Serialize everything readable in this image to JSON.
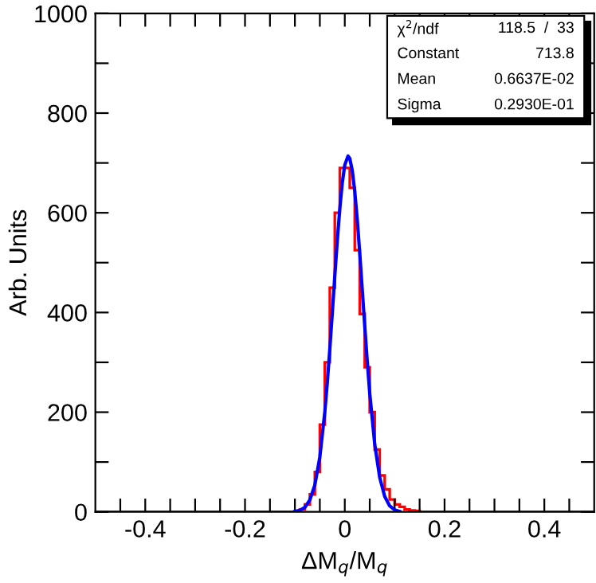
{
  "chart_data": {
    "type": "histogram",
    "xlabel": "ΔM$_{q}$/M$_{q}$",
    "ylabel": "Arb. Units",
    "bins": [
      -0.5,
      -0.49,
      -0.48,
      -0.47,
      -0.46,
      -0.45,
      -0.44,
      -0.43,
      -0.42,
      -0.41,
      -0.4,
      -0.39,
      -0.38,
      -0.37,
      -0.36,
      -0.35,
      -0.34,
      -0.33,
      -0.32,
      -0.31,
      -0.3,
      -0.29,
      -0.28,
      -0.27,
      -0.26,
      -0.25,
      -0.24,
      -0.23,
      -0.22,
      -0.21,
      -0.2,
      -0.19,
      -0.18,
      -0.17,
      -0.16,
      -0.15,
      -0.14,
      -0.13,
      -0.12,
      -0.11,
      -0.1,
      -0.09,
      -0.08,
      -0.07,
      -0.06,
      -0.05,
      -0.04,
      -0.03,
      -0.02,
      -0.01,
      0,
      0.01,
      0.02,
      0.03,
      0.04,
      0.05,
      0.06,
      0.07,
      0.08,
      0.09,
      0.1,
      0.11,
      0.12,
      0.13,
      0.14,
      0.15,
      0.16,
      0.17,
      0.18,
      0.19,
      0.2,
      0.21,
      0.22,
      0.23,
      0.24,
      0.25,
      0.26,
      0.27,
      0.28,
      0.29,
      0.3,
      0.31,
      0.32,
      0.33,
      0.34,
      0.35,
      0.36,
      0.37,
      0.38,
      0.39,
      0.4,
      0.41,
      0.42,
      0.43,
      0.44,
      0.45,
      0.46,
      0.47,
      0.48,
      0.49,
      0.5
    ],
    "series": [
      {
        "color": "#ff0000",
        "values": [
          0,
          0,
          0,
          0,
          0,
          0,
          0,
          0,
          0,
          0,
          0,
          0,
          0,
          0,
          0,
          0,
          0,
          0,
          0,
          0,
          0,
          0,
          0,
          0,
          0,
          0,
          0,
          0,
          0,
          0,
          0,
          0,
          0,
          0,
          0,
          0,
          0,
          0,
          0,
          0,
          0,
          5,
          15,
          35,
          80,
          175,
          300,
          450,
          600,
          690,
          690,
          650,
          525,
          397,
          290,
          200,
          125,
          73,
          45,
          25,
          15,
          10,
          5,
          3,
          2,
          0,
          0,
          0,
          0,
          0,
          0,
          0,
          0,
          0,
          0,
          0,
          0,
          0,
          0,
          0,
          0,
          0,
          0,
          0,
          0,
          0,
          0,
          0,
          0,
          0,
          0,
          0,
          0,
          0,
          0,
          0,
          0,
          0,
          0,
          0
        ]
      },
      {
        "type": "line",
        "color": "#0000ff",
        "x": [
          -0.1,
          -0.09,
          -0.08,
          -0.07,
          -0.06,
          -0.05,
          -0.04,
          -0.035,
          -0.03,
          -0.025,
          -0.02,
          -0.015,
          -0.01,
          -0.005,
          0,
          0.0066,
          0.01,
          0.015,
          0.02,
          0.025,
          0.03,
          0.035,
          0.04,
          0.045,
          0.05,
          0.06,
          0.07,
          0.08,
          0.09,
          0.1,
          0.11
        ],
        "values": [
          1,
          3,
          9,
          24,
          54,
          110,
          201,
          260,
          327,
          399,
          473,
          544,
          608,
          660,
          696,
          714,
          709,
          685,
          643,
          586,
          519,
          446,
          373,
          303,
          238,
          136,
          69,
          31,
          12,
          4,
          1
        ]
      }
    ],
    "xlim": [
      -0.5,
      0.5
    ],
    "ylim": [
      0,
      1000
    ],
    "xticks": [
      {
        "value": -0.45,
        "label": null
      },
      -0.4,
      {
        "value": -0.35,
        "label": null
      },
      {
        "value": -0.3,
        "label": null
      },
      {
        "value": -0.25,
        "label": null
      },
      -0.2,
      {
        "value": -0.15,
        "label": null
      },
      {
        "value": -0.1,
        "label": null
      },
      {
        "value": -0.05,
        "label": null
      },
      0,
      {
        "value": 0.05,
        "label": null
      },
      {
        "value": 0.1,
        "label": null
      },
      {
        "value": 0.15,
        "label": null
      },
      0.2,
      {
        "value": 0.25,
        "label": null
      },
      {
        "value": 0.3,
        "label": null
      },
      {
        "value": 0.35,
        "label": null
      },
      0.4,
      {
        "value": 0.45,
        "label": null
      }
    ],
    "yticks": [
      0,
      {
        "value": 100,
        "label": null
      },
      200,
      {
        "value": 300,
        "label": null
      },
      400,
      {
        "value": 500,
        "label": null
      },
      600,
      {
        "value": 700,
        "label": null
      },
      800,
      {
        "value": 900,
        "label": null
      },
      1000
    ],
    "annotations": [
      "χ$^{2}$/ndf",
      "118.5  /  33",
      "Constant",
      "713.8",
      "Mean",
      "0.6637E-02",
      "Sigma",
      "0.2930E-01"
    ]
  }
}
